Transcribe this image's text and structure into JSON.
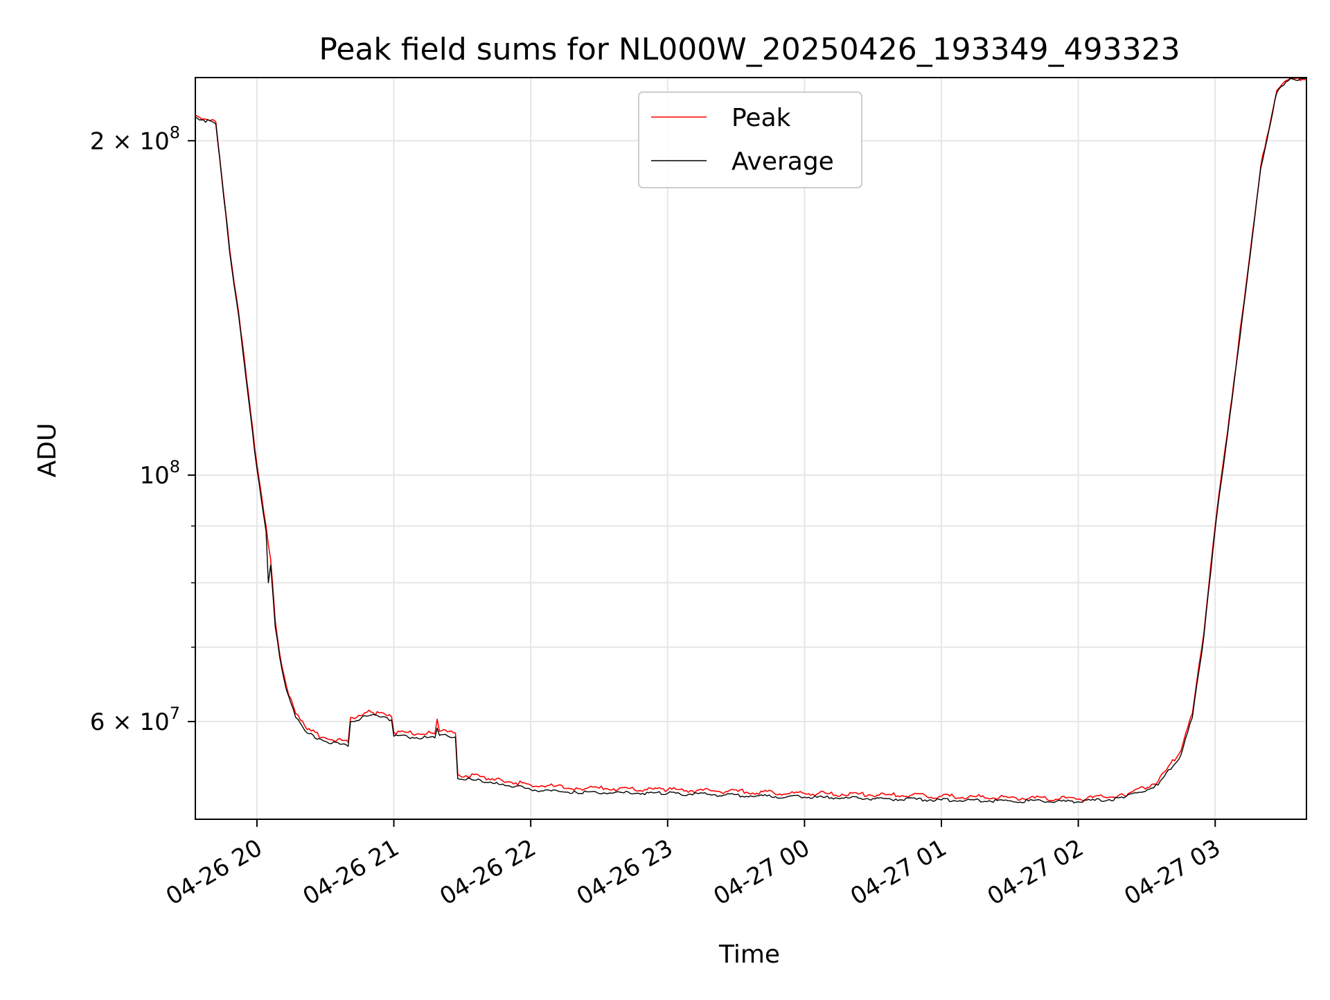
{
  "chart_data": {
    "type": "line",
    "title": "Peak field sums for NL000W_20250426_193349_493323",
    "xlabel": "Time",
    "ylabel": "ADU",
    "x_scale": "time",
    "y_scale": "log",
    "xlim": [
      "2025-04-26 19:33",
      "2025-04-27 03:40"
    ],
    "ylim": [
      49000000,
      228000000
    ],
    "grid": true,
    "legend_placement": "upper center",
    "x_ticks": [
      {
        "t": "2025-04-26 20:00",
        "label": "04-26 20"
      },
      {
        "t": "2025-04-26 21:00",
        "label": "04-26 21"
      },
      {
        "t": "2025-04-26 22:00",
        "label": "04-26 22"
      },
      {
        "t": "2025-04-26 23:00",
        "label": "04-26 23"
      },
      {
        "t": "2025-04-27 00:00",
        "label": "04-27 00"
      },
      {
        "t": "2025-04-27 01:00",
        "label": "04-27 01"
      },
      {
        "t": "2025-04-27 02:00",
        "label": "04-27 02"
      },
      {
        "t": "2025-04-27 03:00",
        "label": "04-27 03"
      }
    ],
    "y_major_ticks": [
      {
        "value": 200000000,
        "base": "2 × 10",
        "exp": "8"
      },
      {
        "value": 100000000,
        "base": "10",
        "exp": "8"
      },
      {
        "value": 60000000,
        "base": "6 × 10",
        "exp": "7"
      }
    ],
    "y_minor_ticks": [
      70000000,
      80000000,
      90000000
    ],
    "series": [
      {
        "name": "Peak",
        "color": "#ff0000",
        "points": [
          [
            "2025-04-26 19:33",
            211000000
          ],
          [
            "2025-04-26 19:42",
            208000000
          ],
          [
            "2025-04-26 19:48",
            160000000
          ],
          [
            "2025-04-26 19:52",
            140000000
          ],
          [
            "2025-04-26 19:59",
            106000000
          ],
          [
            "2025-04-26 20:04",
            90000000
          ],
          [
            "2025-04-26 20:06",
            84000000
          ],
          [
            "2025-04-26 20:08",
            74000000
          ],
          [
            "2025-04-26 20:10",
            69000000
          ],
          [
            "2025-04-26 20:13",
            64500000
          ],
          [
            "2025-04-26 20:17",
            61000000
          ],
          [
            "2025-04-26 20:22",
            59000000
          ],
          [
            "2025-04-26 20:30",
            58000000
          ],
          [
            "2025-04-26 20:40",
            57500000
          ],
          [
            "2025-04-26 20:41",
            60500000
          ],
          [
            "2025-04-26 20:50",
            61200000
          ],
          [
            "2025-04-26 20:59",
            60600000
          ],
          [
            "2025-04-26 21:00",
            58700000
          ],
          [
            "2025-04-26 21:18",
            58500000
          ],
          [
            "2025-04-26 21:19",
            60300000
          ],
          [
            "2025-04-26 21:20",
            58800000
          ],
          [
            "2025-04-26 21:27",
            58600000
          ],
          [
            "2025-04-26 21:28",
            53800000
          ],
          [
            "2025-04-26 21:45",
            53300000
          ],
          [
            "2025-04-26 22:00",
            52600000
          ],
          [
            "2025-04-26 22:20",
            52300000
          ],
          [
            "2025-04-26 23:00",
            52100000
          ],
          [
            "2025-04-27 00:00",
            51700000
          ],
          [
            "2025-04-27 01:00",
            51400000
          ],
          [
            "2025-04-27 02:00",
            51100000
          ],
          [
            "2025-04-27 02:20",
            51500000
          ],
          [
            "2025-04-27 02:35",
            53000000
          ],
          [
            "2025-04-27 02:45",
            56500000
          ],
          [
            "2025-04-27 02:50",
            61000000
          ],
          [
            "2025-04-27 02:55",
            72000000
          ],
          [
            "2025-04-27 03:00",
            90000000
          ],
          [
            "2025-04-27 03:10",
            130000000
          ],
          [
            "2025-04-27 03:20",
            190000000
          ],
          [
            "2025-04-27 03:27",
            222000000
          ],
          [
            "2025-04-27 03:32",
            227000000
          ],
          [
            "2025-04-27 03:40",
            228000000
          ]
        ]
      },
      {
        "name": "Average",
        "color": "#000000",
        "points": [
          [
            "2025-04-26 19:33",
            210000000
          ],
          [
            "2025-04-26 19:42",
            207000000
          ],
          [
            "2025-04-26 19:48",
            159000000
          ],
          [
            "2025-04-26 19:52",
            139000000
          ],
          [
            "2025-04-26 19:59",
            105000000
          ],
          [
            "2025-04-26 20:04",
            89000000
          ],
          [
            "2025-04-26 20:05",
            80000000
          ],
          [
            "2025-04-26 20:06",
            83000000
          ],
          [
            "2025-04-26 20:08",
            73000000
          ],
          [
            "2025-04-26 20:10",
            68500000
          ],
          [
            "2025-04-26 20:13",
            64000000
          ],
          [
            "2025-04-26 20:17",
            60500000
          ],
          [
            "2025-04-26 20:22",
            58600000
          ],
          [
            "2025-04-26 20:30",
            57600000
          ],
          [
            "2025-04-26 20:40",
            57000000
          ],
          [
            "2025-04-26 20:41",
            60000000
          ],
          [
            "2025-04-26 20:50",
            60800000
          ],
          [
            "2025-04-26 20:59",
            60200000
          ],
          [
            "2025-04-26 21:00",
            58200000
          ],
          [
            "2025-04-26 21:18",
            58000000
          ],
          [
            "2025-04-26 21:19",
            59200000
          ],
          [
            "2025-04-26 21:20",
            58300000
          ],
          [
            "2025-04-26 21:27",
            58100000
          ],
          [
            "2025-04-26 21:28",
            53300000
          ],
          [
            "2025-04-26 21:45",
            52900000
          ],
          [
            "2025-04-26 22:00",
            52100000
          ],
          [
            "2025-04-26 22:20",
            51800000
          ],
          [
            "2025-04-26 23:00",
            51700000
          ],
          [
            "2025-04-27 00:00",
            51300000
          ],
          [
            "2025-04-27 01:00",
            51000000
          ],
          [
            "2025-04-27 02:00",
            50800000
          ],
          [
            "2025-04-27 02:20",
            51200000
          ],
          [
            "2025-04-27 02:35",
            52600000
          ],
          [
            "2025-04-27 02:45",
            56000000
          ],
          [
            "2025-04-27 02:50",
            60500000
          ],
          [
            "2025-04-27 02:55",
            71500000
          ],
          [
            "2025-04-27 03:00",
            89500000
          ],
          [
            "2025-04-27 03:10",
            129000000
          ],
          [
            "2025-04-27 03:20",
            189000000
          ],
          [
            "2025-04-27 03:27",
            221000000
          ],
          [
            "2025-04-27 03:32",
            226500000
          ],
          [
            "2025-04-27 03:40",
            228000000
          ]
        ]
      }
    ]
  }
}
